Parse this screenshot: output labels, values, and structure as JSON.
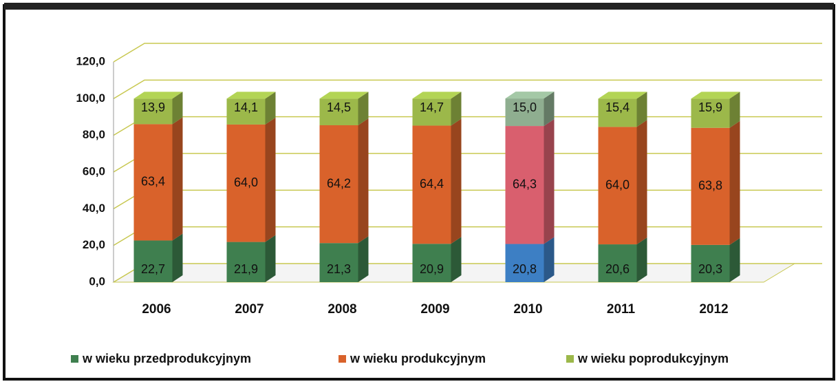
{
  "chart_data": {
    "type": "bar3d_stacked",
    "categories": [
      "2006",
      "2007",
      "2008",
      "2009",
      "2010",
      "2011",
      "2012"
    ],
    "series": [
      {
        "name": "w wieku przedprodukcyjnym",
        "color": "#3f7f4f",
        "colors": [
          "#3f7f4f",
          "#3f7f4f",
          "#3f7f4f",
          "#3f7f4f",
          "#3d7fc4",
          "#3f7f4f",
          "#3f7f4f"
        ],
        "values": [
          22.7,
          21.9,
          21.3,
          20.9,
          20.8,
          20.6,
          20.3
        ],
        "value_labels": [
          "22,7",
          "21,9",
          "21,3",
          "20,9",
          "20,8",
          "20,6",
          "20,3"
        ]
      },
      {
        "name": "w wieku produkcyjnym",
        "color": "#d9622b",
        "colors": [
          "#d9622b",
          "#d9622b",
          "#d9622b",
          "#d9622b",
          "#d95f6e",
          "#d9622b",
          "#d9622b"
        ],
        "values": [
          63.4,
          64.0,
          64.2,
          64.4,
          64.3,
          64.0,
          63.8
        ],
        "value_labels": [
          "63,4",
          "64,0",
          "64,2",
          "64,4",
          "64,3",
          "64,0",
          "63,8"
        ]
      },
      {
        "name": "w wieku poprodukcyjnym",
        "color": "#9cb84a",
        "colors": [
          "#9cb84a",
          "#9cb84a",
          "#9cb84a",
          "#9cb84a",
          "#8fae90",
          "#9cb84a",
          "#9cb84a"
        ],
        "values": [
          13.9,
          14.1,
          14.5,
          14.7,
          15.0,
          15.4,
          15.9
        ],
        "value_labels": [
          "13,9",
          "14,1",
          "14,5",
          "14,7",
          "15,0",
          "15,4",
          "15,9"
        ]
      }
    ],
    "ylim": [
      0,
      120
    ],
    "yticks": [
      {
        "value": 0,
        "label": "0,0"
      },
      {
        "value": 20,
        "label": "20,0"
      },
      {
        "value": 40,
        "label": "40,0"
      },
      {
        "value": 60,
        "label": "60,0"
      },
      {
        "value": 80,
        "label": "80,0"
      },
      {
        "value": 100,
        "label": "100,0"
      },
      {
        "value": 120,
        "label": "120,0"
      }
    ],
    "grid": true
  }
}
